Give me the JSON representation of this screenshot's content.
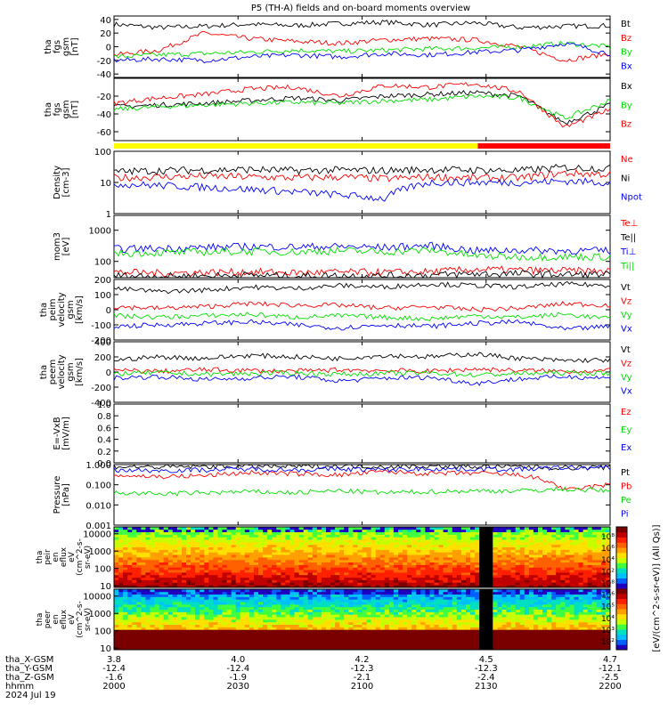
{
  "chart_data": {
    "type": "line",
    "title": "P5 (TH-A) fields and on-board moments overview",
    "date": "2024 Jul 19",
    "x_axis": {
      "label": "hhmm",
      "ticks": [
        "2000",
        "2030",
        "2100",
        "2130",
        "2200"
      ],
      "extra_rows": [
        {
          "label": "tha_X-GSM",
          "values": [
            "3.8",
            "4.0",
            "4.2",
            "4.5",
            "4.7"
          ]
        },
        {
          "label": "tha_Y-GSM",
          "values": [
            "-12.4",
            "-12.4",
            "-12.3",
            "-12.3",
            "-12.1"
          ]
        },
        {
          "label": "tha_Z-GSM",
          "values": [
            "-1.6",
            "-1.9",
            "-2.1",
            "-2.4",
            "-2.5"
          ]
        }
      ]
    },
    "mode_bar": [
      {
        "from": "2000",
        "to": "2128",
        "color": "#ffff00"
      },
      {
        "from": "2128",
        "to": "2200",
        "color": "#ff0000"
      }
    ],
    "panels": [
      {
        "ylabel": [
          "tha",
          "fgs",
          "gsm",
          "[nT]"
        ],
        "ylim": [
          -45,
          45
        ],
        "yticks": [
          "40",
          "20",
          "0",
          "-20",
          "-40"
        ],
        "legend": [
          "Bt",
          "Bz",
          "By",
          "Bx"
        ],
        "series": [
          {
            "name": "Bt",
            "values": [
              33,
              28,
              30,
              33,
              31,
              34,
              36,
              32,
              35,
              28,
              30,
              31
            ]
          },
          {
            "name": "Bz",
            "values": [
              -12,
              -5,
              20,
              12,
              8,
              5,
              10,
              12,
              10,
              0,
              -20,
              -10
            ]
          },
          {
            "name": "By",
            "values": [
              -15,
              -12,
              -10,
              -8,
              -5,
              -7,
              -5,
              -3,
              -2,
              0,
              5,
              0
            ]
          },
          {
            "name": "Bx",
            "values": [
              -20,
              -18,
              -20,
              -15,
              -12,
              -15,
              -10,
              -12,
              -8,
              -5,
              5,
              -10
            ]
          }
        ]
      },
      {
        "ylabel": [
          "tha",
          "fgs",
          "gsm",
          "[nT]"
        ],
        "ylim": [
          -70,
          0
        ],
        "yticks": [
          "-20",
          "-40",
          "-60"
        ],
        "legend": [
          "Bx",
          "By",
          "Bz"
        ],
        "series": [
          {
            "name": "Bx",
            "values": [
              -32,
              -30,
              -28,
              -25,
              -22,
              -25,
              -20,
              -18,
              -16,
              -20,
              -50,
              -30
            ]
          },
          {
            "name": "By",
            "values": [
              -35,
              -32,
              -30,
              -28,
              -27,
              -28,
              -25,
              -24,
              -20,
              -22,
              -45,
              -25
            ]
          },
          {
            "name": "Bz",
            "values": [
              -28,
              -22,
              -18,
              -12,
              -10,
              -20,
              -8,
              -10,
              -6,
              -15,
              -55,
              -35
            ]
          }
        ]
      },
      {
        "ylabel": [
          "Density",
          "[cm-3]"
        ],
        "scale": "log",
        "ylim": [
          1,
          100
        ],
        "yticks": [
          "100",
          "10",
          "1"
        ],
        "legend": [
          "Ne",
          "Ni",
          "Npot"
        ],
        "series": [
          {
            "name": "Ne",
            "values": [
              14,
              15,
              16,
              15,
              14,
              15,
              13,
              15,
              14,
              14,
              20,
              18
            ]
          },
          {
            "name": "Ni",
            "values": [
              22,
              24,
              25,
              26,
              24,
              25,
              24,
              26,
              25,
              24,
              30,
              28
            ]
          },
          {
            "name": "Npot",
            "values": [
              9,
              8,
              7,
              6,
              5,
              4,
              3,
              10,
              10,
              10,
              11,
              10
            ]
          }
        ]
      },
      {
        "ylabel": [
          "mom3",
          "[eV]"
        ],
        "scale": "log",
        "ylim": [
          30,
          3000
        ],
        "yticks": [
          "1000",
          "100"
        ],
        "legend": [
          "Te⊥",
          "Te||",
          "Ti⊥",
          "Ti||"
        ],
        "series": [
          {
            "name": "Te⊥",
            "values": [
              45,
              42,
              44,
              46,
              43,
              45,
              44,
              46,
              55,
              52,
              50,
              48
            ]
          },
          {
            "name": "Te||",
            "values": [
              35,
              33,
              34,
              36,
              34,
              35,
              34,
              36,
              40,
              40,
              38,
              38
            ]
          },
          {
            "name": "Ti⊥",
            "values": [
              250,
              260,
              280,
              300,
              290,
              300,
              280,
              320,
              220,
              230,
              220,
              220
            ]
          },
          {
            "name": "Ti||",
            "values": [
              180,
              190,
              200,
              210,
              200,
              220,
              200,
              230,
              150,
              140,
              140,
              140
            ]
          }
        ]
      },
      {
        "ylabel": [
          "tha",
          "peim",
          "velocity",
          "gsm",
          "[km/s]"
        ],
        "ylim": [
          -200,
          200
        ],
        "yticks": [
          "200",
          "100",
          "0",
          "-100",
          "-200"
        ],
        "legend": [
          "Vt",
          "Vz",
          "Vy",
          "Vx"
        ],
        "series": [
          {
            "name": "Vt",
            "values": [
              140,
              120,
              130,
              150,
              140,
              160,
              150,
              170,
              160,
              150,
              170,
              160
            ]
          },
          {
            "name": "Vz",
            "values": [
              20,
              10,
              20,
              40,
              30,
              30,
              10,
              20,
              0,
              10,
              40,
              30
            ]
          },
          {
            "name": "Vy",
            "values": [
              -40,
              -50,
              -40,
              -30,
              -50,
              -40,
              -50,
              -60,
              -40,
              -50,
              -30,
              -60
            ]
          },
          {
            "name": "Vx",
            "values": [
              -110,
              -100,
              -90,
              -80,
              -100,
              -120,
              -100,
              -110,
              -90,
              -80,
              -130,
              -110
            ]
          }
        ]
      },
      {
        "ylabel": [
          "tha",
          "peem",
          "velocity",
          "gsm",
          "[km/s]"
        ],
        "ylim": [
          -400,
          400
        ],
        "yticks": [
          "400",
          "200",
          "0",
          "-200",
          "-400"
        ],
        "legend": [
          "Vt",
          "Vz",
          "Vy",
          "Vx"
        ],
        "series": [
          {
            "name": "Vt",
            "values": [
              160,
              200,
              180,
              220,
              200,
              180,
              220,
              200,
              240,
              180,
              150,
              160
            ]
          },
          {
            "name": "Vz",
            "values": [
              20,
              10,
              30,
              20,
              10,
              30,
              20,
              10,
              40,
              20,
              10,
              20
            ]
          },
          {
            "name": "Vy",
            "values": [
              -20,
              -10,
              -30,
              -20,
              -10,
              -30,
              -20,
              -10,
              -40,
              -20,
              -10,
              -20
            ]
          },
          {
            "name": "Vx",
            "values": [
              -80,
              -60,
              -100,
              -80,
              -60,
              -120,
              -80,
              -70,
              -150,
              -90,
              -60,
              -80
            ]
          }
        ]
      },
      {
        "ylabel": [
          "E=-VxB",
          "[mV/m]"
        ],
        "ylim": [
          0,
          1
        ],
        "yticks": [
          "1.0",
          "0.8",
          "0.6",
          "0.4",
          "0.2",
          "0.0"
        ],
        "legend": [
          "Ez",
          "Ey",
          "Ex"
        ],
        "series": []
      },
      {
        "ylabel": [
          "Pressure",
          "[nPa]"
        ],
        "scale": "log",
        "ylim": [
          0.001,
          1
        ],
        "yticks": [
          "1.000",
          "0.100",
          "0.010",
          "0.001"
        ],
        "legend": [
          "Pt",
          "Pb",
          "Pe",
          "Pi"
        ],
        "series": [
          {
            "name": "Pt",
            "values": [
              0.8,
              0.75,
              0.8,
              0.82,
              0.8,
              0.85,
              0.8,
              0.82,
              0.8,
              0.78,
              0.7,
              0.72
            ]
          },
          {
            "name": "Pb",
            "values": [
              0.3,
              0.25,
              0.28,
              0.4,
              0.35,
              0.3,
              0.45,
              0.35,
              0.38,
              0.3,
              0.05,
              0.1
            ]
          },
          {
            "name": "Pe",
            "values": [
              0.04,
              0.035,
              0.04,
              0.045,
              0.04,
              0.05,
              0.04,
              0.045,
              0.05,
              0.05,
              0.06,
              0.05
            ]
          },
          {
            "name": "Pi",
            "values": [
              0.55,
              0.5,
              0.55,
              0.6,
              0.55,
              0.6,
              0.55,
              0.62,
              0.6,
              0.58,
              0.7,
              0.68
            ]
          }
        ]
      }
    ],
    "spectrograms": [
      {
        "ylabel": [
          "tha",
          "peir",
          "en",
          "eflux",
          "eV",
          "(cm^2-s-",
          "sr-eV)"
        ],
        "ylim": [
          8,
          25000
        ],
        "yticks": [
          "10000",
          "1000",
          "100",
          "10"
        ]
      },
      {
        "ylabel": [
          "tha",
          "peer",
          "en",
          "eflux",
          "eV",
          "(cm^2-s-",
          "sr-eV)"
        ],
        "ylim": [
          8,
          25000
        ],
        "yticks": [
          "10000",
          "1000",
          "100",
          "10"
        ]
      }
    ],
    "colorbar": {
      "label": "[eV/(cm^2-s-sr-eV)] (All Qs)]",
      "ticks": [
        "10⁸",
        "10⁶",
        "10⁴",
        "10²",
        "10⁸",
        "10⁶",
        "10⁵",
        "10⁴",
        "10³",
        "10²"
      ]
    },
    "colors": {
      "black": "#000000",
      "red": "#ff0000",
      "green": "#00e000",
      "blue": "#0000ff"
    }
  }
}
